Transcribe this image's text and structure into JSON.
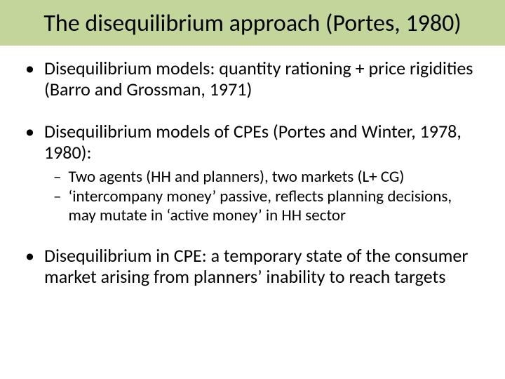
{
  "title": "The disequilibrium approach (Portes, 1980)",
  "title_bg": "#c2d69b",
  "title_fontsize": 34,
  "body_fontsize_l1": 26,
  "body_fontsize_l2": 23,
  "bullets": {
    "b1": "Disequilibrium models: quantity rationing + price rigidities (Barro and Grossman, 1971)",
    "b2": "Disequilibrium models of CPEs (Portes and Winter, 1978, 1980):",
    "b2_sub1": "Two agents (HH and planners), two markets (L+ CG)",
    "b2_sub2": "‘intercompany money’ passive, reflects planning decisions, may mutate in ‘active money’ in HH sector",
    "b3": "Disequilibrium in CPE: a temporary state of the consumer market arising from planners’ inability to reach targets"
  },
  "markers": {
    "l1": "•",
    "l2": "–"
  }
}
